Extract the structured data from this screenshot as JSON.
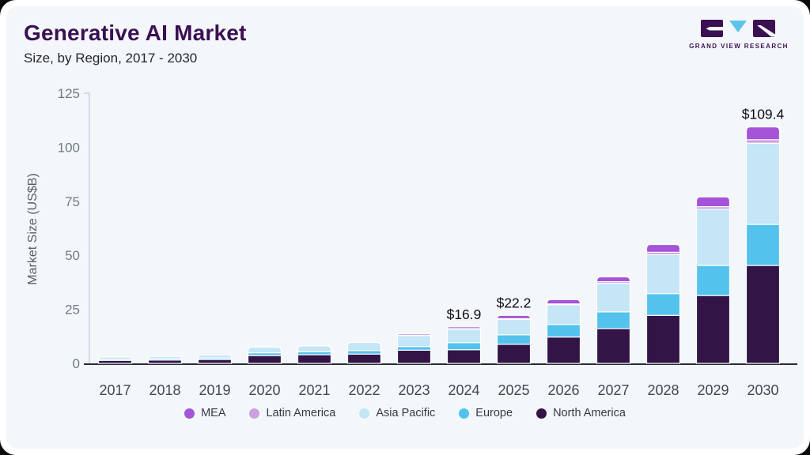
{
  "header": {
    "title": "Generative AI Market",
    "subtitle": "Size, by Region, 2017 - 2030",
    "logo": {
      "text": "GRAND VIEW RESEARCH",
      "dark": "#3b1053",
      "light": "#5bc4e9"
    }
  },
  "chart_data": {
    "type": "bar",
    "stacked": true,
    "title": "Generative AI Market Size, by Region, 2017 - 2030",
    "ylabel": "Market Size (US$B)",
    "xlabel": "",
    "ylim": [
      0,
      125
    ],
    "yticks": [
      0,
      25,
      50,
      75,
      100,
      125
    ],
    "grid": false,
    "legend_position": "bottom",
    "categories": [
      "2017",
      "2018",
      "2019",
      "2020",
      "2021",
      "2022",
      "2023",
      "2024",
      "2025",
      "2026",
      "2027",
      "2028",
      "2029",
      "2030"
    ],
    "series": [
      {
        "name": "North America",
        "color": "#321447",
        "values": [
          1.4,
          1.5,
          1.8,
          3.6,
          4.0,
          4.3,
          6.1,
          6.3,
          8.8,
          12.2,
          16.1,
          22.2,
          31.4,
          45.3
        ]
      },
      {
        "name": "Europe",
        "color": "#53c3ee",
        "values": [
          0.55,
          0.6,
          0.7,
          1.3,
          1.4,
          1.6,
          1.7,
          3.3,
          4.4,
          5.8,
          7.7,
          10.1,
          13.9,
          19.0
        ]
      },
      {
        "name": "Asia Pacific",
        "color": "#c4e6f7",
        "values": [
          1.0,
          1.1,
          1.4,
          2.6,
          2.7,
          3.8,
          5.0,
          6.2,
          7.1,
          9.1,
          13.2,
          18.0,
          26.0,
          37.6
        ]
      },
      {
        "name": "Latin America",
        "color": "#cc9fe1",
        "values": [
          0.05,
          0.05,
          0.05,
          0.1,
          0.1,
          0.1,
          0.2,
          0.3,
          0.4,
          0.4,
          0.8,
          1.1,
          1.2,
          1.6
        ]
      },
      {
        "name": "MEA",
        "color": "#a553d8",
        "values": [
          0.05,
          0.05,
          0.05,
          0.1,
          0.1,
          0.2,
          0.6,
          0.8,
          1.5,
          2.0,
          2.2,
          3.6,
          4.5,
          5.9
        ]
      }
    ],
    "legend_order": [
      "MEA",
      "Latin America",
      "Asia Pacific",
      "Europe",
      "North America"
    ],
    "annotations": [
      {
        "category": "2024",
        "text": "$16.9"
      },
      {
        "category": "2025",
        "text": "$22.2"
      },
      {
        "category": "2030",
        "text": "$109.4"
      }
    ],
    "annotation_color": "#0c0d14",
    "axis_color": "#c9d2dc",
    "baseline_color": "#262c3a",
    "tick_label_color": "#6f7a87",
    "category_label_color": "#3f4754"
  }
}
